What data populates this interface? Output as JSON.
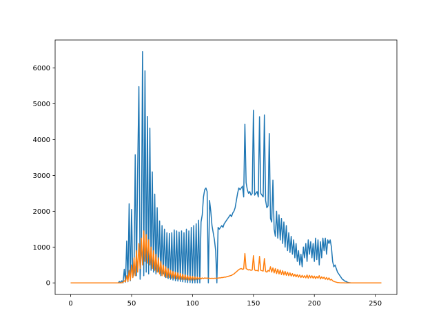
{
  "chart_data": {
    "type": "line",
    "x": [
      0,
      1,
      2,
      3,
      4,
      5,
      6,
      7,
      8,
      9,
      10,
      11,
      12,
      13,
      14,
      15,
      16,
      17,
      18,
      19,
      20,
      21,
      22,
      23,
      24,
      25,
      26,
      27,
      28,
      29,
      30,
      31,
      32,
      33,
      34,
      35,
      36,
      37,
      38,
      39,
      40,
      41,
      42,
      43,
      44,
      45,
      46,
      47,
      48,
      49,
      50,
      51,
      52,
      53,
      54,
      55,
      56,
      57,
      58,
      59,
      60,
      61,
      62,
      63,
      64,
      65,
      66,
      67,
      68,
      69,
      70,
      71,
      72,
      73,
      74,
      75,
      76,
      77,
      78,
      79,
      80,
      81,
      82,
      83,
      84,
      85,
      86,
      87,
      88,
      89,
      90,
      91,
      92,
      93,
      94,
      95,
      96,
      97,
      98,
      99,
      100,
      101,
      102,
      103,
      104,
      105,
      106,
      107,
      108,
      109,
      110,
      111,
      112,
      113,
      114,
      115,
      116,
      117,
      118,
      119,
      120,
      121,
      122,
      123,
      124,
      125,
      126,
      127,
      128,
      129,
      130,
      131,
      132,
      133,
      134,
      135,
      136,
      137,
      138,
      139,
      140,
      141,
      142,
      143,
      144,
      145,
      146,
      147,
      148,
      149,
      150,
      151,
      152,
      153,
      154,
      155,
      156,
      157,
      158,
      159,
      160,
      161,
      162,
      163,
      164,
      165,
      166,
      167,
      168,
      169,
      170,
      171,
      172,
      173,
      174,
      175,
      176,
      177,
      178,
      179,
      180,
      181,
      182,
      183,
      184,
      185,
      186,
      187,
      188,
      189,
      190,
      191,
      192,
      193,
      194,
      195,
      196,
      197,
      198,
      199,
      200,
      201,
      202,
      203,
      204,
      205,
      206,
      207,
      208,
      209,
      210,
      211,
      212,
      213,
      214,
      215,
      216,
      217,
      218,
      219,
      220,
      221,
      222,
      223,
      224,
      225,
      226,
      227,
      228,
      229,
      230,
      231,
      232,
      233,
      234,
      235,
      236,
      237,
      238,
      239,
      240,
      241,
      242,
      243,
      244,
      245,
      246,
      247,
      248,
      249,
      250,
      251,
      252,
      253,
      254,
      255
    ],
    "series": [
      {
        "color": "#1f77b4",
        "values": [
          0,
          0,
          0,
          0,
          0,
          0,
          0,
          0,
          0,
          0,
          0,
          0,
          0,
          0,
          0,
          0,
          0,
          0,
          0,
          0,
          0,
          0,
          0,
          0,
          0,
          0,
          0,
          0,
          0,
          0,
          0,
          0,
          0,
          0,
          0,
          0,
          0,
          0,
          0,
          0,
          40,
          10,
          60,
          0,
          380,
          20,
          1170,
          30,
          2210,
          60,
          2050,
          150,
          300,
          3580,
          200,
          3200,
          5480,
          100,
          1000,
          6460,
          200,
          5920,
          300,
          4650,
          250,
          4320,
          350,
          3100,
          300,
          2480,
          250,
          2100,
          300,
          1730,
          200,
          1600,
          250,
          1500,
          150,
          1400,
          120,
          1380,
          100,
          1400,
          80,
          1480,
          60,
          1450,
          50,
          1420,
          40,
          1450,
          30,
          1400,
          20,
          1500,
          10,
          1450,
          10,
          1550,
          0,
          1600,
          0,
          1650,
          0,
          1750,
          0,
          1700,
          1900,
          2400,
          2600,
          2650,
          2550,
          0,
          2300,
          2000,
          1600,
          1400,
          1200,
          900,
          0,
          1550,
          1500,
          1550,
          1600,
          1550,
          1650,
          1700,
          1750,
          1800,
          1850,
          1900,
          1850,
          1950,
          2000,
          2100,
          2300,
          2500,
          2650,
          2600,
          2650,
          2700,
          2400,
          4430,
          2800,
          2600,
          2500,
          2550,
          2450,
          2500,
          4820,
          2450,
          2500,
          2550,
          2400,
          4640,
          2500,
          2450,
          2400,
          4690,
          2300,
          2100,
          2150,
          4170,
          1800,
          1700,
          2870,
          1500,
          1300,
          2000,
          1250,
          1900,
          1200,
          1800,
          1100,
          1700,
          1000,
          1600,
          900,
          1400,
          850,
          1300,
          800,
          1200,
          700,
          1100,
          600,
          900,
          500,
          800,
          450,
          1000,
          700,
          1100,
          600,
          1200,
          800,
          1150,
          700,
          1100,
          600,
          1250,
          650,
          1200,
          500,
          1150,
          700,
          1250,
          900,
          1250,
          800,
          1200,
          1100,
          1200,
          1000,
          600,
          450,
          500,
          400,
          300,
          250,
          200,
          150,
          100,
          80,
          50,
          40,
          20,
          10,
          5,
          0,
          0,
          0,
          0,
          0,
          0,
          0,
          0,
          0,
          0,
          0,
          0,
          0,
          0,
          0,
          0,
          0,
          0,
          0,
          0,
          0,
          0,
          0,
          0,
          0,
          0
        ]
      },
      {
        "color": "#ff7f0e",
        "values": [
          0,
          0,
          0,
          0,
          0,
          0,
          0,
          0,
          0,
          0,
          0,
          0,
          0,
          0,
          0,
          0,
          0,
          0,
          0,
          0,
          0,
          0,
          0,
          0,
          0,
          0,
          0,
          0,
          0,
          0,
          0,
          0,
          0,
          0,
          0,
          0,
          0,
          0,
          0,
          0,
          0,
          0,
          5,
          20,
          60,
          30,
          200,
          40,
          350,
          80,
          500,
          150,
          700,
          200,
          900,
          300,
          1100,
          400,
          1250,
          500,
          1450,
          600,
          1350,
          550,
          1200,
          500,
          1000,
          400,
          900,
          350,
          800,
          300,
          700,
          250,
          600,
          200,
          500,
          180,
          450,
          150,
          400,
          150,
          350,
          130,
          320,
          120,
          300,
          110,
          280,
          100,
          260,
          100,
          240,
          90,
          220,
          90,
          200,
          80,
          190,
          80,
          180,
          80,
          170,
          90,
          160,
          100,
          150,
          110,
          140,
          120,
          140,
          130,
          135,
          130,
          130,
          125,
          130,
          125,
          130,
          130,
          130,
          135,
          140,
          140,
          150,
          150,
          160,
          160,
          170,
          180,
          190,
          200,
          210,
          230,
          250,
          280,
          310,
          340,
          370,
          390,
          400,
          380,
          390,
          820,
          400,
          380,
          360,
          370,
          350,
          360,
          760,
          360,
          340,
          350,
          330,
          740,
          350,
          340,
          330,
          680,
          320,
          300,
          350,
          320,
          450,
          300,
          420,
          280,
          400,
          260,
          380,
          250,
          360,
          230,
          340,
          220,
          320,
          210,
          300,
          200,
          280,
          190,
          260,
          180,
          240,
          170,
          230,
          160,
          220,
          150,
          210,
          150,
          200,
          140,
          220,
          130,
          210,
          140,
          200,
          130,
          190,
          120,
          180,
          130,
          200,
          110,
          170,
          120,
          160,
          100,
          150,
          90,
          140,
          80,
          100,
          60,
          40,
          30,
          20,
          10,
          8,
          5,
          3,
          2,
          1,
          0,
          0,
          0,
          0,
          0,
          0,
          0,
          0,
          0,
          0,
          0,
          0,
          0,
          0,
          0,
          0,
          0,
          0,
          0,
          0,
          0,
          0,
          0,
          0,
          0,
          0,
          0,
          0,
          0,
          0,
          0
        ]
      }
    ],
    "xlim": [
      -12.75,
      267.75
    ],
    "xticks": [
      0,
      50,
      100,
      150,
      200,
      250
    ],
    "ylim": [
      -323,
      6783
    ],
    "yticks": [
      0,
      1000,
      2000,
      3000,
      4000,
      5000,
      6000
    ]
  }
}
